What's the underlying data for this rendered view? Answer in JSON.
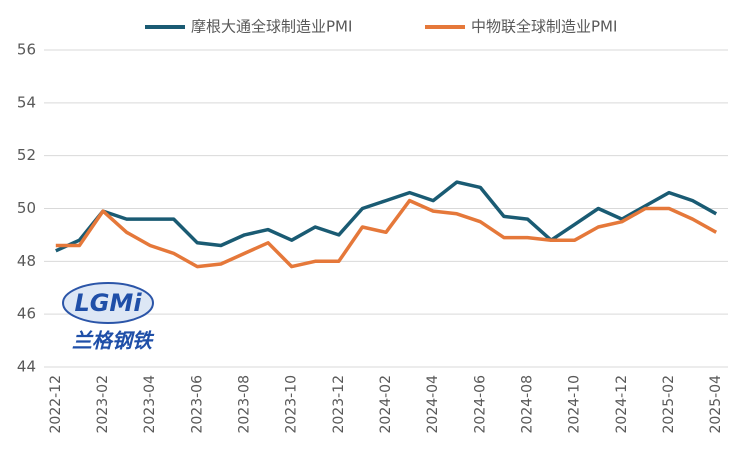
{
  "chart_data": {
    "type": "line",
    "categories": [
      "2022-12",
      null,
      "2023-02",
      null,
      "2023-04",
      null,
      "2023-06",
      null,
      "2023-08",
      null,
      "2023-10",
      null,
      "2023-12",
      null,
      "2024-02",
      null,
      "2024-04",
      null,
      "2024-06",
      null,
      "2024-08",
      null,
      "2024-10",
      null,
      "2024-12",
      null,
      "2025-02",
      null,
      "2025-04"
    ],
    "series": [
      {
        "name": "摩根大通全球制造业PMI",
        "color": "#1a5b73",
        "values": [
          48.4,
          48.8,
          49.9,
          49.6,
          49.6,
          49.6,
          48.7,
          48.6,
          49.0,
          49.2,
          48.8,
          49.3,
          49.0,
          50.0,
          50.3,
          50.6,
          50.3,
          51.0,
          50.8,
          49.7,
          49.6,
          48.8,
          49.4,
          50.0,
          49.6,
          50.1,
          50.6,
          50.3,
          49.8
        ]
      },
      {
        "name": "中物联全球制造业PMI",
        "color": "#e5783a",
        "values": [
          48.6,
          48.6,
          49.9,
          49.1,
          48.6,
          48.3,
          47.8,
          47.9,
          48.3,
          48.7,
          47.8,
          48.0,
          48.0,
          49.3,
          49.1,
          50.3,
          49.9,
          49.8,
          49.5,
          48.9,
          48.9,
          48.8,
          48.8,
          49.3,
          49.5,
          50.0,
          50.0,
          49.6,
          49.1
        ]
      }
    ],
    "ylim": [
      44,
      56
    ],
    "yticks": [
      44,
      46,
      48,
      50,
      52,
      54,
      56
    ],
    "grid": true,
    "logo": {
      "mark": "LGMi",
      "text": "兰格钢铁"
    }
  }
}
